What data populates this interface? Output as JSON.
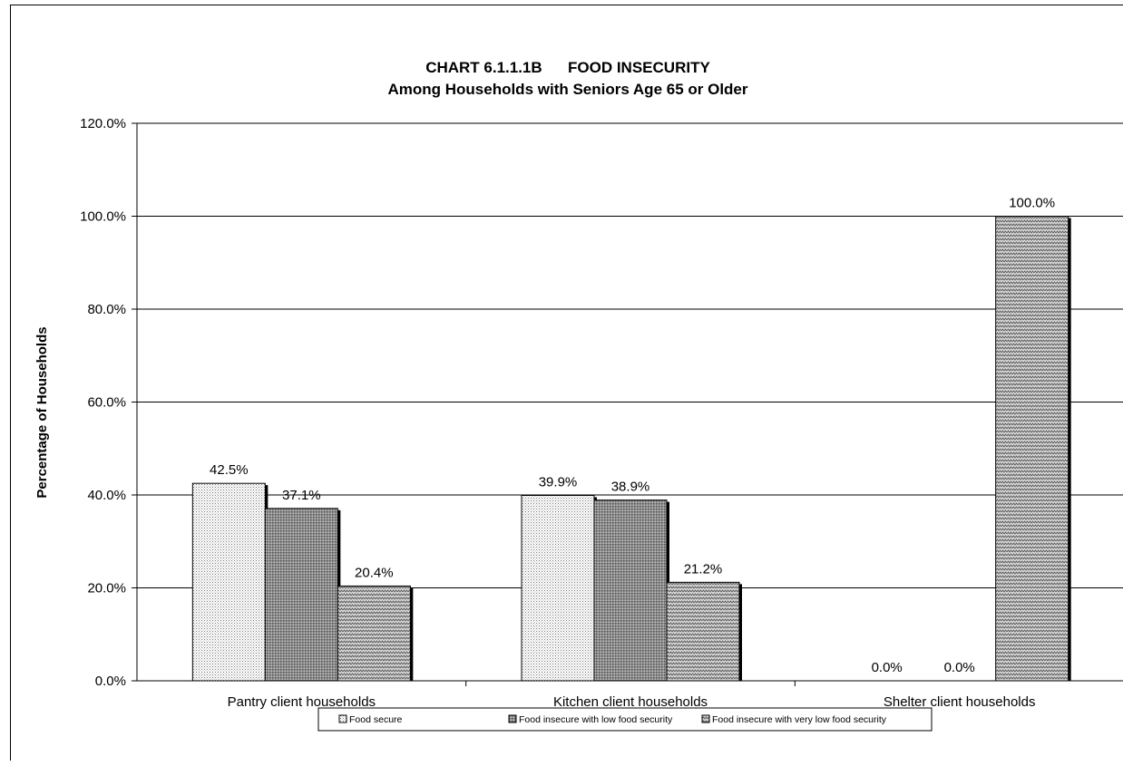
{
  "chart_data": {
    "type": "bar",
    "title": "CHART 6.1.1.1B      FOOD INSECURITY",
    "subtitle": "Among Households with Seniors Age 65 or Older",
    "xlabel": "",
    "ylabel": "Percentage of Households",
    "ylim": [
      0,
      120
    ],
    "yticks": [
      "0.0%",
      "20.0%",
      "40.0%",
      "60.0%",
      "80.0%",
      "100.0%",
      "120.0%"
    ],
    "grid": true,
    "legend_position": "bottom",
    "categories": [
      "Pantry client households",
      "Kitchen client households",
      "Shelter client households"
    ],
    "series": [
      {
        "name": "Food secure",
        "values": [
          42.5,
          39.9,
          0.0
        ],
        "labels": [
          "42.5%",
          "39.9%",
          "0.0%"
        ],
        "pattern": "dots"
      },
      {
        "name": "Food insecure with low food security",
        "values": [
          37.1,
          38.9,
          0.0
        ],
        "labels": [
          "37.1%",
          "38.9%",
          "0.0%"
        ],
        "pattern": "grid"
      },
      {
        "name": "Food insecure with very low food security",
        "values": [
          20.4,
          21.2,
          100.0
        ],
        "labels": [
          "20.4%",
          "21.2%",
          "100.0%"
        ],
        "pattern": "zigzag"
      }
    ]
  }
}
